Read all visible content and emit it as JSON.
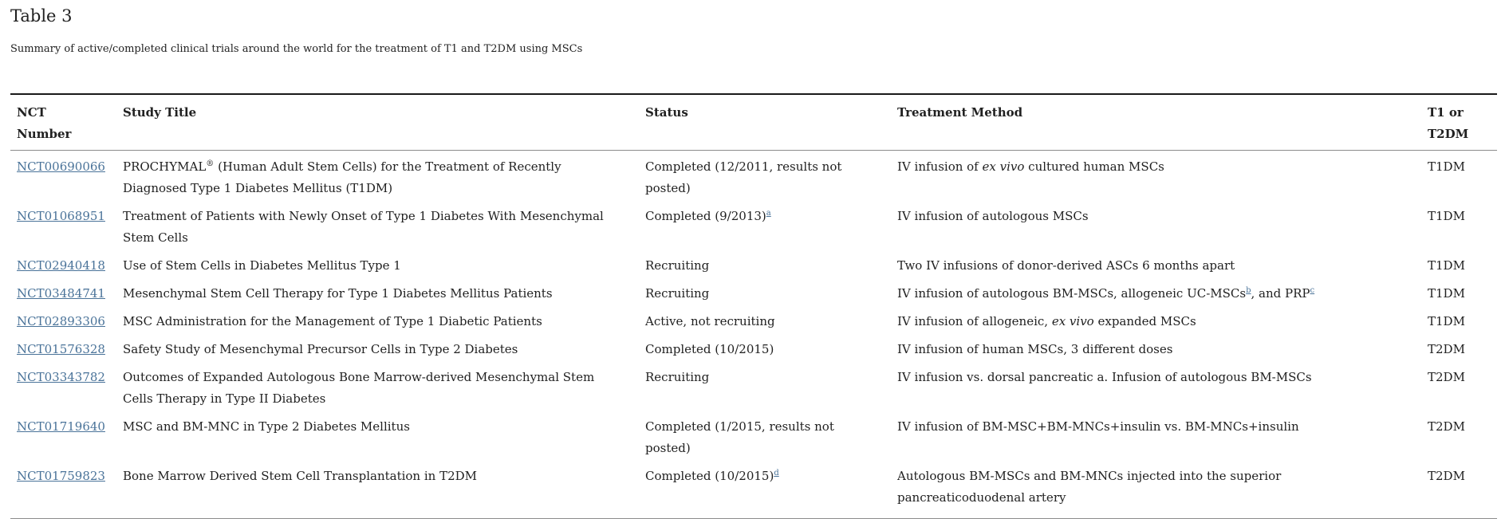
{
  "page": {
    "title": "Table 3",
    "caption": "Summary of active/completed clinical trials around the world for the treatment of T1 and T2DM using MSCs"
  },
  "colors": {
    "link": "#4a7399",
    "text": "#212121",
    "table_top_border": "#1a1a1a",
    "table_inner_border": "#8c8c8c",
    "background": "#ffffff"
  },
  "table": {
    "columns": [
      "NCT Number",
      "Study Title",
      "Status",
      "Treatment Method",
      "T1 or T2DM"
    ],
    "rows": [
      {
        "nct": "NCT00690066",
        "title": [
          {
            "text": "PROCHYMAL"
          },
          {
            "text": "®",
            "sup": true
          },
          {
            "text": " (Human Adult Stem Cells) for the Treatment of Recently Diagnosed Type 1 Diabetes Mellitus (T1DM)"
          }
        ],
        "status": [
          {
            "text": "Completed (12/2011, results not posted)"
          }
        ],
        "treatment": [
          {
            "text": "IV infusion of "
          },
          {
            "text": "ex vivo",
            "italic": true
          },
          {
            "text": " cultured human MSCs"
          }
        ],
        "type": "T1DM"
      },
      {
        "nct": "NCT01068951",
        "title": [
          {
            "text": "Treatment of Patients with Newly Onset of Type 1 Diabetes With Mesenchymal Stem Cells"
          }
        ],
        "status": [
          {
            "text": "Completed (9/2013)"
          },
          {
            "text": "a",
            "sup_link": true
          }
        ],
        "treatment": [
          {
            "text": "IV infusion of autologous MSCs"
          }
        ],
        "type": "T1DM"
      },
      {
        "nct": "NCT02940418",
        "title": [
          {
            "text": "Use of Stem Cells in Diabetes Mellitus Type 1"
          }
        ],
        "status": [
          {
            "text": "Recruiting"
          }
        ],
        "treatment": [
          {
            "text": "Two IV infusions of donor-derived ASCs 6 months apart"
          }
        ],
        "type": "T1DM"
      },
      {
        "nct": "NCT03484741",
        "title": [
          {
            "text": "Mesenchymal Stem Cell Therapy for Type 1 Diabetes Mellitus Patients"
          }
        ],
        "status": [
          {
            "text": "Recruiting"
          }
        ],
        "treatment": [
          {
            "text": "IV infusion of autologous BM-MSCs, allogeneic UC-MSCs"
          },
          {
            "text": "b",
            "sup_link": true
          },
          {
            "text": ", and PRP"
          },
          {
            "text": "c",
            "sup_link": true
          }
        ],
        "type": "T1DM"
      },
      {
        "nct": "NCT02893306",
        "title": [
          {
            "text": "MSC Administration for the Management of Type 1 Diabetic Patients"
          }
        ],
        "status": [
          {
            "text": "Active, not recruiting"
          }
        ],
        "treatment": [
          {
            "text": "IV infusion of allogeneic, "
          },
          {
            "text": "ex vivo",
            "italic": true
          },
          {
            "text": " expanded MSCs"
          }
        ],
        "type": "T1DM"
      },
      {
        "nct": "NCT01576328",
        "title": [
          {
            "text": "Safety Study of Mesenchymal Precursor Cells in Type 2 Diabetes"
          }
        ],
        "status": [
          {
            "text": "Completed (10/2015)"
          }
        ],
        "treatment": [
          {
            "text": "IV infusion of human MSCs, 3 different doses"
          }
        ],
        "type": "T2DM"
      },
      {
        "nct": "NCT03343782",
        "title": [
          {
            "text": "Outcomes of Expanded Autologous Bone Marrow-derived Mesenchymal Stem Cells Therapy in Type II Diabetes"
          }
        ],
        "status": [
          {
            "text": "Recruiting"
          }
        ],
        "treatment": [
          {
            "text": "IV infusion vs. dorsal pancreatic a. Infusion of autologous BM-MSCs"
          }
        ],
        "type": "T2DM"
      },
      {
        "nct": "NCT01719640",
        "title": [
          {
            "text": "MSC and BM-MNC in Type 2 Diabetes Mellitus"
          }
        ],
        "status": [
          {
            "text": "Completed (1/2015, results not posted)"
          }
        ],
        "treatment": [
          {
            "text": "IV infusion of BM-MSC+BM-MNCs+insulin vs. BM-MNCs+insulin"
          }
        ],
        "type": "T2DM"
      },
      {
        "nct": "NCT01759823",
        "title": [
          {
            "text": "Bone Marrow Derived Stem Cell Transplantation in T2DM"
          }
        ],
        "status": [
          {
            "text": "Completed (10/2015)"
          },
          {
            "text": "d",
            "sup_link": true
          }
        ],
        "treatment": [
          {
            "text": "Autologous BM-MSCs and BM-MNCs injected into the superior pancreaticoduodenal artery"
          }
        ],
        "type": "T2DM"
      }
    ]
  }
}
